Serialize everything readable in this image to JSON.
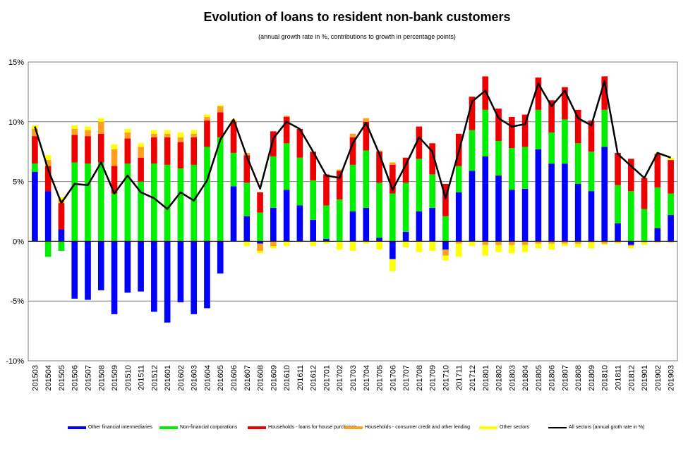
{
  "chart_data": {
    "type": "bar",
    "title": "Evolution of loans to resident non-bank customers",
    "subtitle": "(annual growth rate in %, contributions to growth in percentage points)",
    "ylim": [
      -10,
      15
    ],
    "yticks": [
      "15%",
      "10%",
      "5%",
      "0%",
      "-5%",
      "-10%"
    ],
    "yticks_values": [
      15,
      10,
      5,
      0,
      -5,
      -10
    ],
    "grid": true,
    "legend_position": "bottom",
    "categories": [
      "201503",
      "201504",
      "201505",
      "201506",
      "201507",
      "201508",
      "201509",
      "201510",
      "201511",
      "201512",
      "201601",
      "201602",
      "201603",
      "201604",
      "201605",
      "201606",
      "201607",
      "201608",
      "201609",
      "201610",
      "201611",
      "201612",
      "201701",
      "201702",
      "201703",
      "201704",
      "201705",
      "201706",
      "201707",
      "201708",
      "201709",
      "201710",
      "201711",
      "201712",
      "201801",
      "201802",
      "201803",
      "201804",
      "201805",
      "201806",
      "201807",
      "201808",
      "201809",
      "201810",
      "201811",
      "201812",
      "201901",
      "201902",
      "201903"
    ],
    "series": [
      {
        "name": "Other financial intermediaries",
        "color": "#0000ff",
        "values": [
          5.8,
          4.2,
          1.0,
          -4.8,
          -4.9,
          -4.1,
          -6.1,
          -4.3,
          -4.2,
          -5.9,
          -6.8,
          -5.1,
          -6.1,
          -5.6,
          -2.7,
          4.6,
          2.1,
          -0.2,
          2.8,
          4.3,
          3.0,
          1.8,
          0.2,
          0.0,
          2.5,
          2.8,
          0.3,
          -1.5,
          0.8,
          2.5,
          2.8,
          -0.7,
          4.1,
          5.9,
          7.1,
          5.5,
          4.3,
          4.4,
          7.7,
          6.5,
          6.5,
          4.8,
          4.2,
          7.9,
          1.5,
          -0.3,
          0.0,
          1.1,
          2.2
        ]
      },
      {
        "name": "Non-financial corporations",
        "color": "#00ee00",
        "values": [
          0.7,
          -1.3,
          -0.8,
          6.6,
          6.5,
          6.6,
          4.0,
          6.5,
          5.0,
          6.5,
          6.4,
          6.1,
          6.4,
          7.9,
          8.7,
          2.8,
          2.8,
          2.4,
          4.3,
          3.9,
          4.0,
          3.3,
          2.8,
          3.5,
          3.9,
          4.8,
          4.6,
          4.0,
          4.1,
          4.4,
          2.8,
          2.1,
          2.2,
          3.4,
          3.9,
          2.9,
          3.5,
          3.5,
          3.3,
          2.6,
          3.7,
          3.4,
          3.3,
          3.1,
          3.2,
          4.2,
          2.7,
          3.4,
          1.8
        ]
      },
      {
        "name": "Households - loans for house purchases",
        "color": "#ee0000",
        "values": [
          2.3,
          2.1,
          2.2,
          2.3,
          2.3,
          2.4,
          2.3,
          2.1,
          2.0,
          2.2,
          2.3,
          2.2,
          2.3,
          2.2,
          2.1,
          2.6,
          2.3,
          1.7,
          2.1,
          2.2,
          2.4,
          2.4,
          2.6,
          2.4,
          2.3,
          2.4,
          2.6,
          2.4,
          2.1,
          2.7,
          2.6,
          2.7,
          2.7,
          2.8,
          2.8,
          2.7,
          2.6,
          2.7,
          2.7,
          2.7,
          2.7,
          2.8,
          2.6,
          2.8,
          2.7,
          2.7,
          2.6,
          2.8,
          2.8
        ]
      },
      {
        "name": "Households - consumer credit and other lending",
        "color": "#ffa020",
        "values": [
          0.6,
          0.5,
          0.3,
          0.5,
          0.5,
          1.0,
          1.4,
          0.5,
          0.9,
          0.3,
          0.3,
          0.4,
          0.3,
          0.3,
          0.5,
          0.1,
          0.2,
          -0.6,
          -0.4,
          0.1,
          0.0,
          0.0,
          0.0,
          0.1,
          0.3,
          0.3,
          0.1,
          0.2,
          0.0,
          0.0,
          0.0,
          -0.5,
          -0.2,
          0.0,
          -0.3,
          -0.3,
          -0.3,
          -0.3,
          -0.2,
          -0.2,
          -0.2,
          -0.2,
          -0.1,
          -0.2,
          -0.1,
          -0.1,
          -0.1,
          -0.1,
          -0.1
        ]
      },
      {
        "name": "Other sectors",
        "color": "#ffff00",
        "values": [
          0.3,
          0.4,
          0.2,
          0.3,
          0.3,
          0.3,
          0.4,
          0.3,
          0.3,
          0.3,
          0.3,
          0.4,
          0.3,
          0.2,
          0.1,
          0.1,
          -0.4,
          -0.2,
          -0.2,
          -0.4,
          -0.1,
          -0.4,
          -0.2,
          -0.7,
          -0.8,
          -0.2,
          -0.7,
          -1.0,
          -0.5,
          -0.9,
          -0.8,
          -0.4,
          -1.1,
          -0.4,
          -0.9,
          -0.6,
          -0.7,
          -0.6,
          -0.4,
          -0.5,
          -0.2,
          -0.3,
          -0.5,
          -0.1,
          -0.1,
          -0.2,
          -0.2,
          0.1,
          0.2
        ]
      },
      {
        "name": "All sectors (annual groth rate in %)",
        "color": "#000000",
        "type": "line",
        "values": [
          9.6,
          6.0,
          3.2,
          4.8,
          4.7,
          6.6,
          4.0,
          5.5,
          4.1,
          3.6,
          2.7,
          4.1,
          3.4,
          5.1,
          8.5,
          10.2,
          7.1,
          4.4,
          8.6,
          10.0,
          9.4,
          7.5,
          5.5,
          5.3,
          8.2,
          9.9,
          7.3,
          4.3,
          6.4,
          8.7,
          7.5,
          3.6,
          7.5,
          11.7,
          12.6,
          10.3,
          9.6,
          9.8,
          13.2,
          11.3,
          12.6,
          10.3,
          9.7,
          13.4,
          7.3,
          6.3,
          5.3,
          7.4,
          7.0
        ]
      }
    ]
  }
}
